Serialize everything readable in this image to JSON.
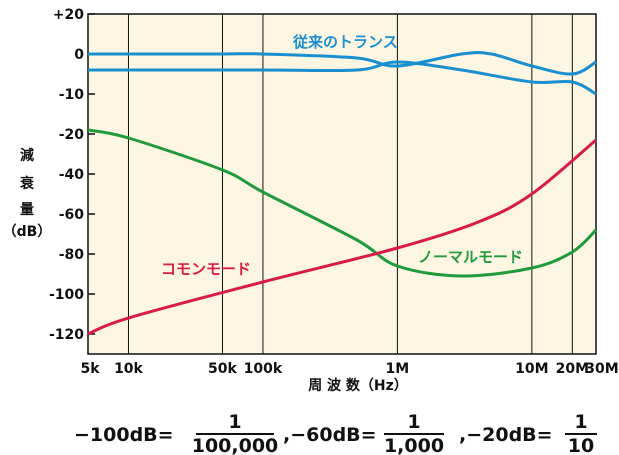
{
  "chart_data": {
    "type": "line",
    "x_scale": "log",
    "xlim": [
      "5k",
      "30M"
    ],
    "ylim": [
      -130,
      20
    ],
    "grid": true,
    "x_ticks": [
      "5k",
      "10k",
      "50k",
      "100k",
      "1M",
      "10M",
      "20M",
      "30M"
    ],
    "y_ticks": [
      "+20",
      "0",
      "-10",
      "-20",
      "-40",
      "-60",
      "-80",
      "-100",
      "-120"
    ],
    "xlabel": "周 波 数（Hz）",
    "ylabel_lines": [
      "減",
      "衰",
      "量",
      "（dB）"
    ],
    "series": [
      {
        "name": "従来のトランス",
        "color": "#1a8fd0",
        "points": [
          [
            5000,
            0
          ],
          [
            10000,
            0
          ],
          [
            50000,
            0
          ],
          [
            100000,
            0
          ],
          [
            500000,
            -1
          ],
          [
            1000000,
            -3
          ],
          [
            3000000,
            0
          ],
          [
            5000000,
            0
          ],
          [
            10000000,
            -3
          ],
          [
            20000000,
            -5
          ],
          [
            30000000,
            -2
          ]
        ]
      },
      {
        "name": "従来のトランス",
        "color": "#1a8fd0",
        "points": [
          [
            5000,
            -4
          ],
          [
            100000,
            -4
          ],
          [
            500000,
            -4
          ],
          [
            1000000,
            -2
          ],
          [
            3000000,
            -4
          ],
          [
            10000000,
            -7
          ],
          [
            20000000,
            -7
          ],
          [
            30000000,
            -10
          ]
        ]
      },
      {
        "name": "ノーマルモード",
        "color": "#1f9a3c",
        "points": [
          [
            5000,
            -19
          ],
          [
            10000,
            -22
          ],
          [
            50000,
            -38
          ],
          [
            100000,
            -49
          ],
          [
            500000,
            -73
          ],
          [
            1000000,
            -86
          ],
          [
            3000000,
            -91
          ],
          [
            10000000,
            -87
          ],
          [
            20000000,
            -79
          ],
          [
            30000000,
            -68
          ]
        ]
      },
      {
        "name": "コモンモード",
        "color": "#d81c47",
        "points": [
          [
            5000,
            -120
          ],
          [
            10000,
            -112
          ],
          [
            100000,
            -94
          ],
          [
            1000000,
            -77
          ],
          [
            4000000,
            -64
          ],
          [
            10000000,
            -50
          ],
          [
            30000000,
            -23
          ]
        ]
      }
    ],
    "labels": [
      {
        "text": "従来のトランス",
        "color": "#1a8fd0"
      },
      {
        "text": "ノーマルモード",
        "color": "#1f9a3c"
      },
      {
        "text": "コモンモード",
        "color": "#d81c47"
      }
    ]
  },
  "formula": {
    "part1_lhs": "−100dB=",
    "part1_num": "1",
    "part1_den": "100,000",
    "part2_lhs": ",−60dB=",
    "part2_num": "1",
    "part2_den": "1,000",
    "part3_lhs": ",−20dB=",
    "part3_num": "1",
    "part3_den": "10"
  }
}
